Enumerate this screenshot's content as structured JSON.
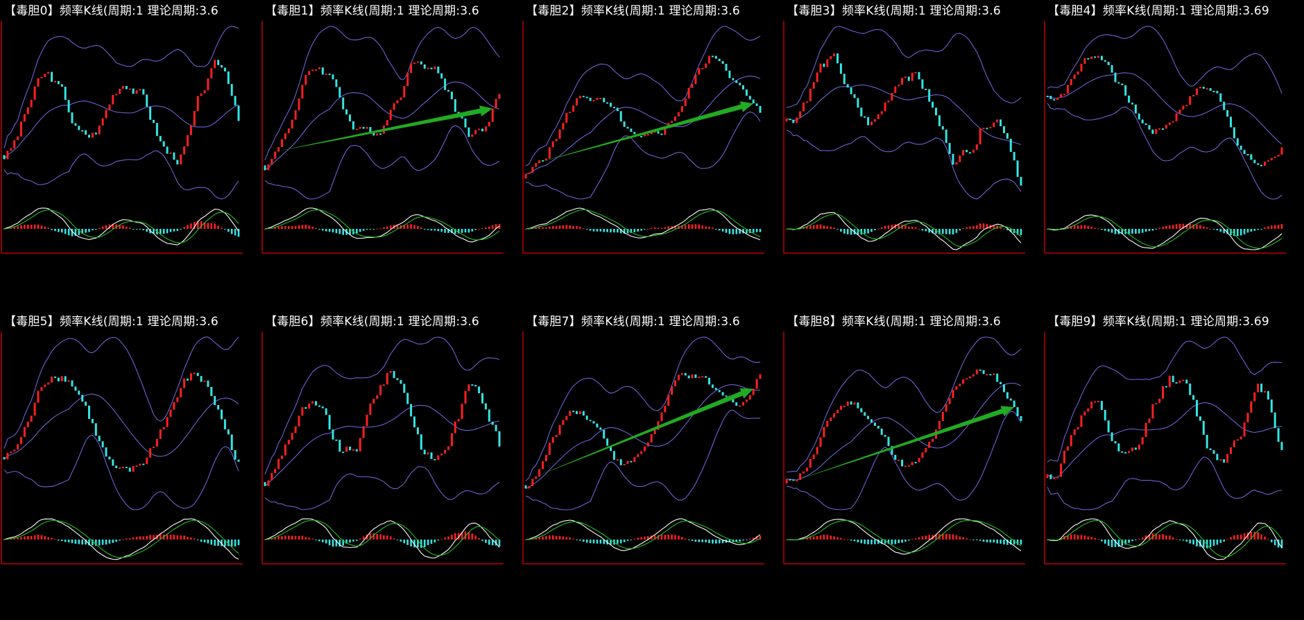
{
  "panels": [
    {
      "title": "【毒胆0】频率K线(周期:1 理论周期:3.6",
      "has_arrow": false
    },
    {
      "title": "【毒胆1】频率K线(周期:1 理论周期:3.6",
      "has_arrow": true
    },
    {
      "title": "【毒胆2】频率K线(周期:1 理论周期:3.6",
      "has_arrow": true
    },
    {
      "title": "【毒胆3】频率K线(周期:1 理论周期:3.6",
      "has_arrow": false
    },
    {
      "title": "【毒胆4】频率K线(周期:1 理论周期:3.69",
      "has_arrow": false
    },
    {
      "title": "【毒胆5】频率K线(周期:1 理论周期:3.6",
      "has_arrow": false
    },
    {
      "title": "【毒胆6】频率K线(周期:1 理论周期:3.6",
      "has_arrow": false
    },
    {
      "title": "【毒胆7】频率K线(周期:1 理论周期:3.6",
      "has_arrow": true
    },
    {
      "title": "【毒胆8】频率K线(周期:1 理论周期:3.6",
      "has_arrow": true
    },
    {
      "title": "【毒胆9】频率K线(周期:1 理论周期:3.69",
      "has_arrow": false
    }
  ],
  "colors": {
    "background": "#000000",
    "axis": "#c00000",
    "candle_up": "#ff2020",
    "candle_down": "#33e6e6",
    "band": "#6b63d6",
    "macd_fast": "#ffffff",
    "macd_slow": "#22c022",
    "arrow": "#22aa22"
  }
}
